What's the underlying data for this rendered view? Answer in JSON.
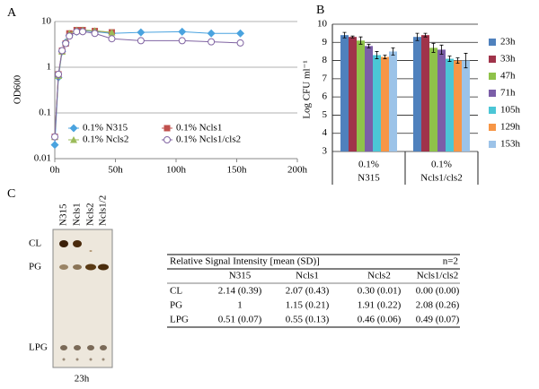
{
  "panels": [
    "A",
    "B",
    "C"
  ],
  "chart_data": [
    {
      "type": "line",
      "ylabel": "OD600",
      "log_y": true,
      "grid": true,
      "ylim": [
        0.01,
        10
      ],
      "yticks": [
        0.01,
        0.1,
        1,
        10
      ],
      "xlim": [
        0,
        200
      ],
      "xticks": [
        {
          "value": 0,
          "label": "0h"
        },
        {
          "value": 50,
          "label": "50h"
        },
        {
          "value": 100,
          "label": "100h"
        },
        {
          "value": 150,
          "label": "150h"
        },
        {
          "value": 200,
          "label": "200h"
        }
      ],
      "series": [
        {
          "name": "0.1% N315",
          "color": "#4aa3df",
          "marker": "diamond",
          "x": [
            0,
            3,
            6,
            9,
            12,
            18,
            23,
            33,
            47,
            71,
            105,
            129,
            153
          ],
          "values": [
            0.02,
            0.6,
            2.2,
            3.5,
            5,
            6,
            6.3,
            6,
            5.5,
            5.8,
            6,
            5.5,
            5.5
          ]
        },
        {
          "name": "0.1% Ncls1",
          "color": "#c0504d",
          "marker": "square",
          "x": [
            0,
            3,
            6,
            9,
            12,
            18,
            23,
            33,
            47
          ],
          "values": [
            0.03,
            0.7,
            2.3,
            3.3,
            5.5,
            6.5,
            6.5,
            6.2,
            5.8
          ]
        },
        {
          "name": "0.1% Ncls2",
          "color": "#9bbb59",
          "marker": "triangle",
          "x": [
            0,
            3,
            6,
            9,
            12,
            18,
            23,
            33,
            47
          ],
          "values": [
            0.03,
            0.65,
            2.2,
            3.5,
            5.5,
            6.5,
            6.5,
            6.3,
            5.8
          ]
        },
        {
          "name": "0.1% Ncls1/cls2",
          "color": "#8064a2",
          "marker": "circle-open",
          "x": [
            0,
            3,
            6,
            9,
            12,
            18,
            23,
            33,
            47,
            71,
            105,
            129,
            153
          ],
          "values": [
            0.03,
            0.7,
            2.3,
            3.3,
            4.8,
            6,
            6,
            5.5,
            4.2,
            3.8,
            3.8,
            3.6,
            3.4
          ]
        }
      ]
    },
    {
      "type": "bar",
      "ylabel": "Log CFU ml⁻¹",
      "grid": true,
      "ylim": [
        3,
        10
      ],
      "yticks": [
        3,
        4,
        5,
        6,
        7,
        8,
        9,
        10
      ],
      "categories": [
        [
          "0.1%",
          "N315"
        ],
        [
          "0.1%",
          "Ncls1/cls2"
        ]
      ],
      "series": [
        {
          "name": "23h",
          "color": "#4f81bd",
          "values": [
            9.4,
            9.3
          ],
          "errors": [
            0.15,
            0.2
          ]
        },
        {
          "name": "33h",
          "color": "#a0334a",
          "values": [
            9.3,
            9.4
          ],
          "errors": [
            0.05,
            0.1
          ]
        },
        {
          "name": "47h",
          "color": "#8fc24a",
          "values": [
            9.1,
            8.7
          ],
          "errors": [
            0.2,
            0.25
          ]
        },
        {
          "name": "71h",
          "color": "#7b5ea8",
          "values": [
            8.8,
            8.6
          ],
          "errors": [
            0.1,
            0.25
          ]
        },
        {
          "name": "105h",
          "color": "#4bc6d6",
          "values": [
            8.3,
            8.1
          ],
          "errors": [
            0.2,
            0.15
          ]
        },
        {
          "name": "129h",
          "color": "#f79646",
          "values": [
            8.2,
            8.0
          ],
          "errors": [
            0.1,
            0.15
          ]
        },
        {
          "name": "153h",
          "color": "#9cc3e8",
          "values": [
            8.5,
            8.0
          ],
          "errors": [
            0.2,
            0.4
          ]
        }
      ]
    }
  ],
  "gel": {
    "lanes": [
      "N315",
      "Ncls1",
      "Ncls2",
      "Ncls1/2"
    ],
    "bands": [
      "CL",
      "PG",
      "LPG"
    ],
    "caption": "23h"
  },
  "table": {
    "title": "Relative Signal Intensity [mean (SD)]",
    "note": "n=2",
    "columns": [
      "N315",
      "Ncls1",
      "Ncls2",
      "Ncls1/cls2"
    ],
    "rows": [
      [
        "CL",
        "2.14 (0.39)",
        "2.07 (0.43)",
        "0.30 (0.01)",
        "0.00 (0.00)"
      ],
      [
        "PG",
        "1",
        "1.15 (0.21)",
        "1.91 (0.22)",
        "2.08 (0.26)"
      ],
      [
        "LPG",
        "0.51 (0.07)",
        "0.55 (0.13)",
        "0.46 (0.06)",
        "0.49 (0.07)"
      ]
    ]
  }
}
